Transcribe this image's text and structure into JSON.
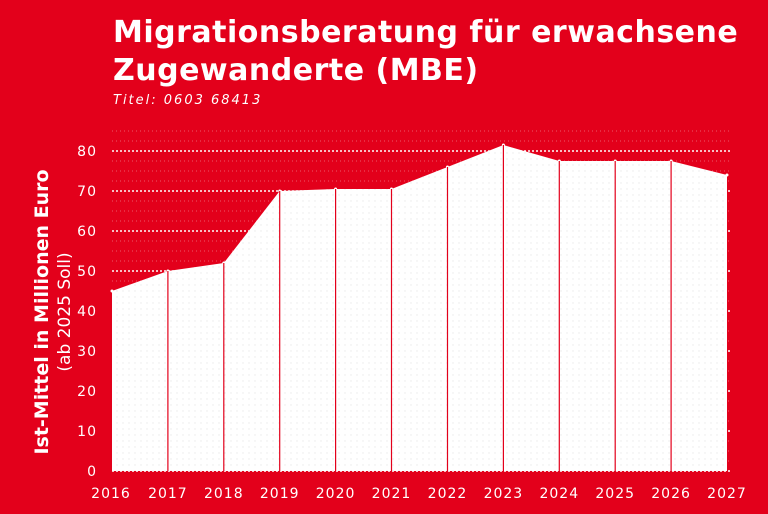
{
  "colors": {
    "background": "#e3001b",
    "area": "#ffffff",
    "text": "#ffffff",
    "divider": "#e3001b"
  },
  "chart_data": {
    "type": "area",
    "title": "Migrationsberatung für erwachsene Zugewanderte (MBE)",
    "subtitle": "Titel: 0603 68413",
    "ylabel": "Ist-Mittel in Millionen Euro",
    "ylabel_sub": "(ab 2025 Soll)",
    "xlabel": "",
    "x": [
      2016,
      2017,
      2018,
      2019,
      2020,
      2021,
      2022,
      2023,
      2024,
      2025,
      2026,
      2027
    ],
    "values": [
      45,
      50,
      52,
      70,
      70.5,
      70.5,
      76,
      81.5,
      77.5,
      77.5,
      77.5,
      74
    ],
    "ylim": [
      0,
      80
    ],
    "yticks": [
      0,
      10,
      20,
      30,
      40,
      50,
      60,
      70,
      80
    ],
    "grid": true,
    "legend": "none"
  }
}
